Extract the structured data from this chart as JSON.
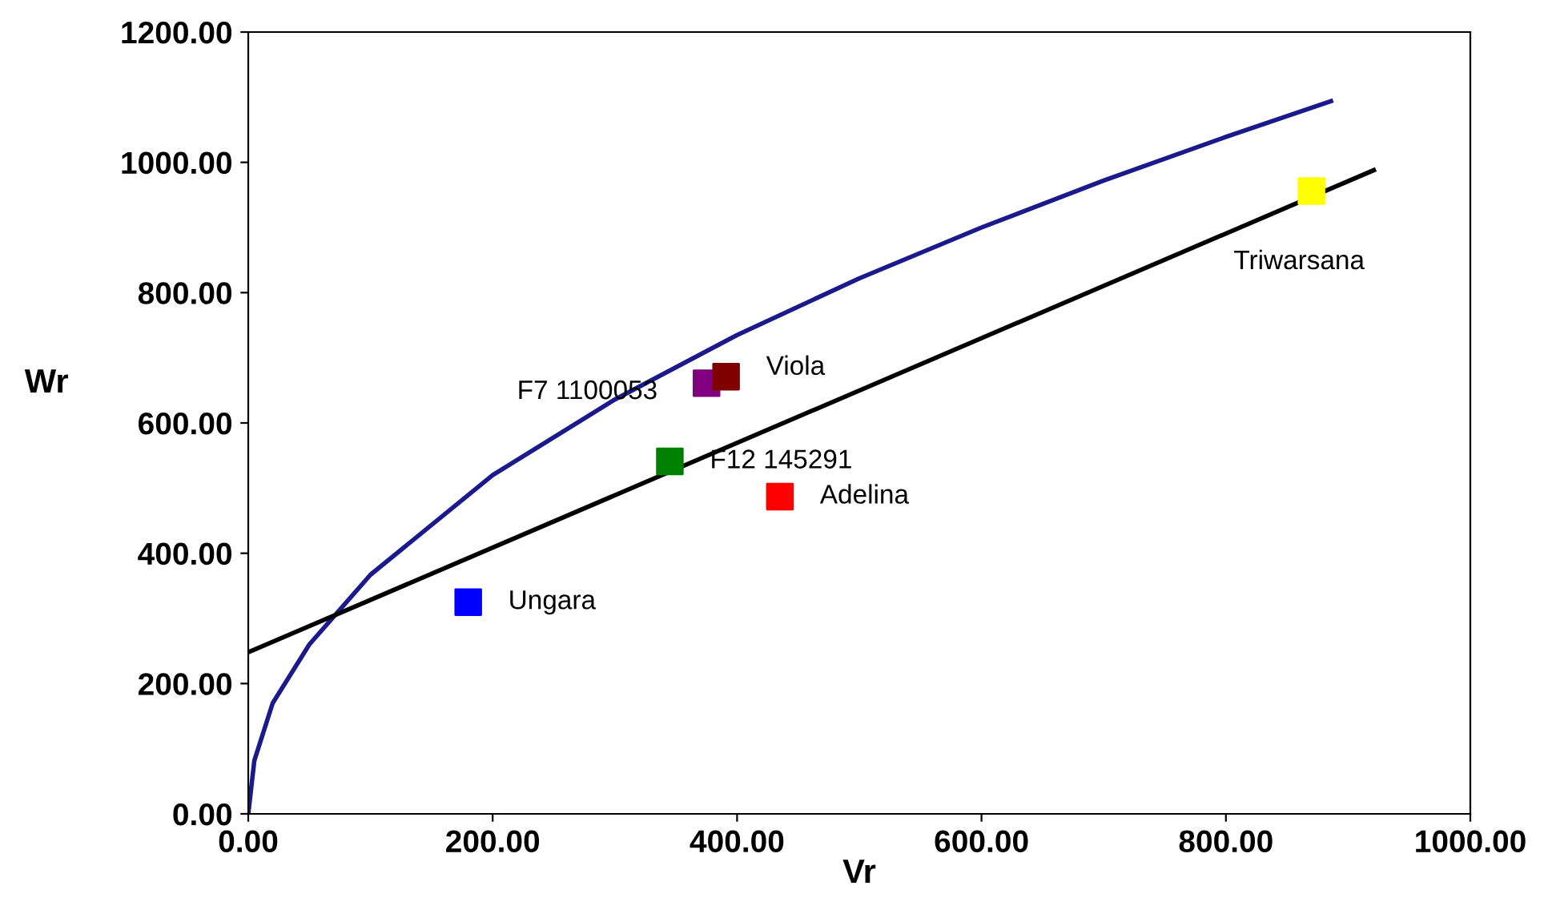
{
  "chart_data": {
    "type": "scatter",
    "xlabel": "Vr",
    "ylabel": "Wr",
    "xlim": [
      0,
      1000
    ],
    "ylim": [
      0,
      1200
    ],
    "xticks": [
      {
        "value": 0,
        "label": "0.00"
      },
      {
        "value": 200,
        "label": "200.00"
      },
      {
        "value": 400,
        "label": "400.00"
      },
      {
        "value": 600,
        "label": "600.00"
      },
      {
        "value": 800,
        "label": "800.00"
      },
      {
        "value": 1000,
        "label": "1000.00"
      }
    ],
    "yticks": [
      {
        "value": 0,
        "label": "0.00"
      },
      {
        "value": 200,
        "label": "200.00"
      },
      {
        "value": 400,
        "label": "400.00"
      },
      {
        "value": 600,
        "label": "600.00"
      },
      {
        "value": 800,
        "label": "800.00"
      },
      {
        "value": 1000,
        "label": "1000.00"
      },
      {
        "value": 1200,
        "label": "1200.00"
      }
    ],
    "grid": false,
    "legend": false,
    "series": [
      {
        "type": "line",
        "color": "#1a1a8c",
        "line_style": "solid",
        "marker": "none",
        "x": [
          0,
          5,
          20,
          50,
          100,
          200,
          300,
          400,
          500,
          600,
          700,
          800,
          886
        ],
        "values": [
          0,
          82,
          170,
          260,
          367,
          520,
          636,
          735,
          822,
          900,
          972,
          1039,
          1094
        ]
      },
      {
        "type": "line",
        "color": "#000000",
        "line_style": "solid",
        "marker": "none",
        "x": [
          0,
          921
        ],
        "values": [
          248,
          988
        ]
      },
      {
        "marker": "square",
        "x": [
          180,
          345,
          375,
          391,
          435,
          870
        ],
        "values": [
          325,
          541,
          661,
          671,
          487,
          956
        ],
        "colors": [
          "#0000ff",
          "#008000",
          "#800080",
          "#800000",
          "#ff0000",
          "#ffff00"
        ]
      }
    ],
    "annotations": [
      {
        "text": "Ungara",
        "x": 180,
        "y": 325
      },
      {
        "text": "F12 145291",
        "x": 345,
        "y": 541
      },
      {
        "text": "F7 1100053",
        "x": 375,
        "y": 661
      },
      {
        "text": "Viola",
        "x": 391,
        "y": 671
      },
      {
        "text": "Adelina",
        "x": 435,
        "y": 487
      },
      {
        "text": "Triwarsana",
        "x": 870,
        "y": 956
      }
    ]
  }
}
